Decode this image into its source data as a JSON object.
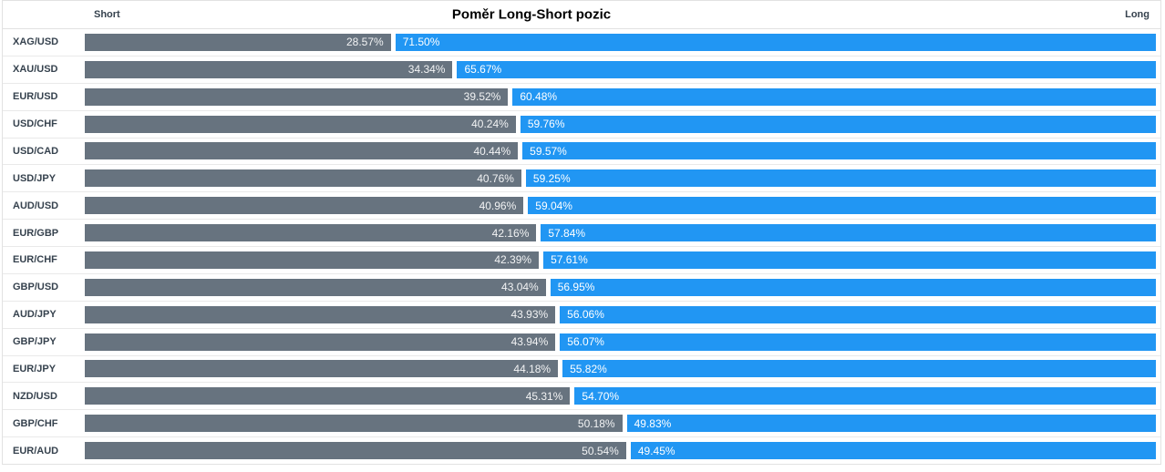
{
  "chart_data": {
    "type": "bar",
    "orientation": "horizontal-stacked",
    "title": "Poměr Long-Short pozic",
    "legend": {
      "left": "Short",
      "right": "Long",
      "position": "top"
    },
    "value_format": "percent",
    "xlim": [
      0,
      100
    ],
    "grid": false,
    "colors": {
      "short_bar": "#67737f",
      "long_bar": "#2196f3",
      "label_text": "#36424e",
      "border": "#e2e2e2"
    },
    "categories": [
      "XAG/USD",
      "XAU/USD",
      "EUR/USD",
      "USD/CHF",
      "USD/CAD",
      "USD/JPY",
      "AUD/USD",
      "EUR/GBP",
      "EUR/CHF",
      "GBP/USD",
      "AUD/JPY",
      "GBP/JPY",
      "EUR/JPY",
      "NZD/USD",
      "GBP/CHF",
      "EUR/AUD"
    ],
    "series": [
      {
        "name": "Short",
        "values": [
          28.57,
          34.34,
          39.52,
          40.24,
          40.44,
          40.76,
          40.96,
          42.16,
          42.39,
          43.04,
          43.93,
          43.94,
          44.18,
          45.31,
          50.18,
          50.54
        ],
        "labels": [
          "28.57%",
          "34.34%",
          "39.52%",
          "40.24%",
          "40.44%",
          "40.76%",
          "40.96%",
          "42.16%",
          "42.39%",
          "43.04%",
          "43.93%",
          "43.94%",
          "44.18%",
          "45.31%",
          "50.18%",
          "50.54%"
        ]
      },
      {
        "name": "Long",
        "values": [
          71.5,
          65.67,
          60.48,
          59.76,
          59.57,
          59.25,
          59.04,
          57.84,
          57.61,
          56.95,
          56.06,
          56.07,
          55.82,
          54.7,
          49.83,
          49.45
        ],
        "labels": [
          "71.50%",
          "65.67%",
          "60.48%",
          "59.76%",
          "59.57%",
          "59.25%",
          "59.04%",
          "57.84%",
          "57.61%",
          "56.95%",
          "56.06%",
          "56.07%",
          "55.82%",
          "54.70%",
          "49.83%",
          "49.45%"
        ]
      }
    ]
  }
}
